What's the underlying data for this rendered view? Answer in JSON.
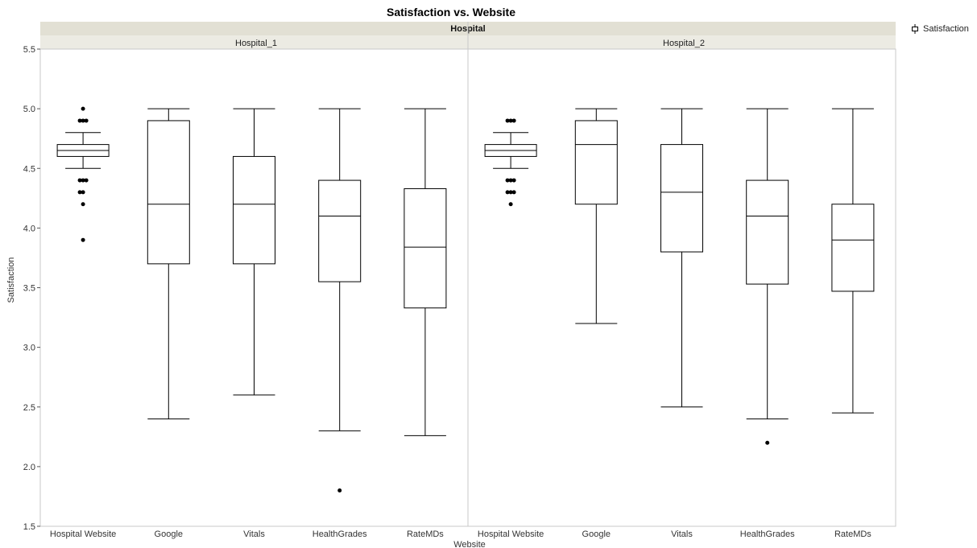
{
  "chart_data": {
    "type": "box",
    "title": "Satisfaction vs. Website",
    "xlabel": "Website",
    "ylabel": "Satisfaction",
    "ylim": [
      1.5,
      5.5
    ],
    "yticks": [
      "1.5",
      "2.0",
      "2.5",
      "3.0",
      "3.5",
      "4.0",
      "4.5",
      "5.0",
      "5.5"
    ],
    "facet_header": "Hospital",
    "legend": "Satisfaction",
    "panels": [
      {
        "name": "Hospital_1",
        "boxes": [
          {
            "category": "Hospital Website",
            "whisker_low": 4.5,
            "q1": 4.6,
            "median": 4.65,
            "q3": 4.7,
            "whisker_high": 4.8,
            "outliers": [
              5.0,
              4.9,
              4.9,
              4.9,
              4.4,
              4.4,
              4.4,
              4.3,
              4.3,
              4.2,
              3.9
            ]
          },
          {
            "category": "Google",
            "whisker_low": 2.4,
            "q1": 3.7,
            "median": 4.2,
            "q3": 4.9,
            "whisker_high": 5.0,
            "outliers": []
          },
          {
            "category": "Vitals",
            "whisker_low": 2.6,
            "q1": 3.7,
            "median": 4.2,
            "q3": 4.6,
            "whisker_high": 5.0,
            "outliers": []
          },
          {
            "category": "HealthGrades",
            "whisker_low": 2.3,
            "q1": 3.55,
            "median": 4.1,
            "q3": 4.4,
            "whisker_high": 5.0,
            "outliers": [
              1.8
            ]
          },
          {
            "category": "RateMDs",
            "whisker_low": 2.26,
            "q1": 3.33,
            "median": 3.84,
            "q3": 4.33,
            "whisker_high": 5.0,
            "outliers": []
          }
        ]
      },
      {
        "name": "Hospital_2",
        "boxes": [
          {
            "category": "Hospital Website",
            "whisker_low": 4.5,
            "q1": 4.6,
            "median": 4.65,
            "q3": 4.7,
            "whisker_high": 4.8,
            "outliers": [
              4.9,
              4.9,
              4.9,
              4.4,
              4.4,
              4.4,
              4.3,
              4.3,
              4.3,
              4.2
            ]
          },
          {
            "category": "Google",
            "whisker_low": 3.2,
            "q1": 4.2,
            "median": 4.7,
            "q3": 4.9,
            "whisker_high": 5.0,
            "outliers": []
          },
          {
            "category": "Vitals",
            "whisker_low": 2.5,
            "q1": 3.8,
            "median": 4.3,
            "q3": 4.7,
            "whisker_high": 5.0,
            "outliers": []
          },
          {
            "category": "HealthGrades",
            "whisker_low": 2.4,
            "q1": 3.53,
            "median": 4.1,
            "q3": 4.4,
            "whisker_high": 5.0,
            "outliers": [
              2.2
            ]
          },
          {
            "category": "RateMDs",
            "whisker_low": 2.45,
            "q1": 3.47,
            "median": 3.9,
            "q3": 4.2,
            "whisker_high": 5.0,
            "outliers": []
          }
        ]
      }
    ]
  }
}
